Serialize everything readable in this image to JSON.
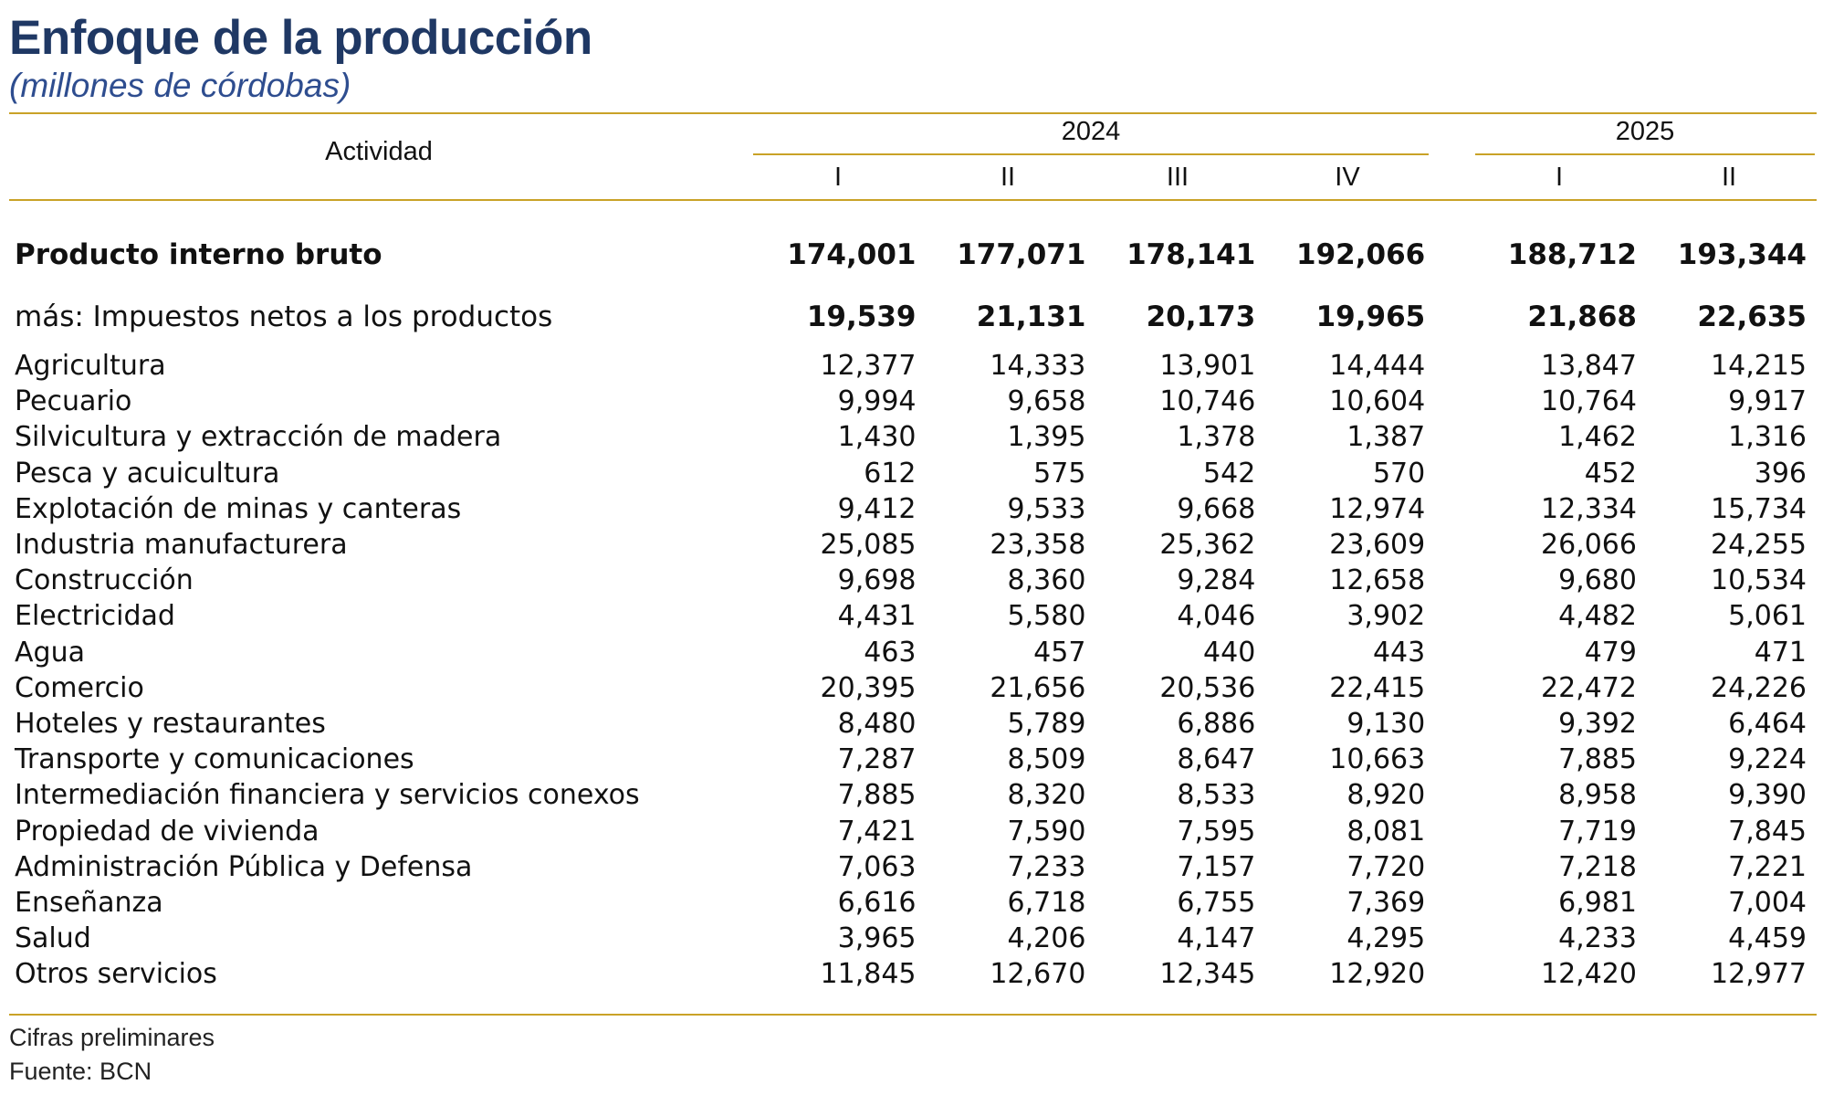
{
  "title": "Enfoque de la producción",
  "subtitle": "(millones de córdobas)",
  "header": {
    "activity": "Actividad",
    "year1": "2024",
    "year2": "2025",
    "quarters": [
      "I",
      "II",
      "III",
      "IV",
      "I",
      "II"
    ]
  },
  "gdp": {
    "label": "Producto interno bruto",
    "values": [
      "174,001",
      "177,071",
      "178,141",
      "192,066",
      "188,712",
      "193,344"
    ]
  },
  "taxes": {
    "label": "más: Impuestos netos a los productos",
    "values": [
      "19,539",
      "21,131",
      "20,173",
      "19,965",
      "21,868",
      "22,635"
    ]
  },
  "rows": [
    {
      "label": "Agricultura",
      "values": [
        "12,377",
        "14,333",
        "13,901",
        "14,444",
        "13,847",
        "14,215"
      ]
    },
    {
      "label": "Pecuario",
      "values": [
        "9,994",
        "9,658",
        "10,746",
        "10,604",
        "10,764",
        "9,917"
      ]
    },
    {
      "label": "Silvicultura y extracción de madera",
      "values": [
        "1,430",
        "1,395",
        "1,378",
        "1,387",
        "1,462",
        "1,316"
      ]
    },
    {
      "label": "Pesca y acuicultura",
      "values": [
        "612",
        "575",
        "542",
        "570",
        "452",
        "396"
      ]
    },
    {
      "label": "Explotación de minas y canteras",
      "values": [
        "9,412",
        "9,533",
        "9,668",
        "12,974",
        "12,334",
        "15,734"
      ]
    },
    {
      "label": "Industria manufacturera",
      "values": [
        "25,085",
        "23,358",
        "25,362",
        "23,609",
        "26,066",
        "24,255"
      ]
    },
    {
      "label": "Construcción",
      "values": [
        "9,698",
        "8,360",
        "9,284",
        "12,658",
        "9,680",
        "10,534"
      ]
    },
    {
      "label": "Electricidad",
      "values": [
        "4,431",
        "5,580",
        "4,046",
        "3,902",
        "4,482",
        "5,061"
      ]
    },
    {
      "label": "Agua",
      "values": [
        "463",
        "457",
        "440",
        "443",
        "479",
        "471"
      ]
    },
    {
      "label": "Comercio",
      "values": [
        "20,395",
        "21,656",
        "20,536",
        "22,415",
        "22,472",
        "24,226"
      ]
    },
    {
      "label": "Hoteles y restaurantes",
      "values": [
        "8,480",
        "5,789",
        "6,886",
        "9,130",
        "9,392",
        "6,464"
      ]
    },
    {
      "label": "Transporte y comunicaciones",
      "values": [
        "7,287",
        "8,509",
        "8,647",
        "10,663",
        "7,885",
        "9,224"
      ]
    },
    {
      "label": "Intermediación financiera y servicios conexos",
      "values": [
        "7,885",
        "8,320",
        "8,533",
        "8,920",
        "8,958",
        "9,390"
      ]
    },
    {
      "label": "Propiedad de vivienda",
      "values": [
        "7,421",
        "7,590",
        "7,595",
        "8,081",
        "7,719",
        "7,845"
      ]
    },
    {
      "label": "Administración Pública y Defensa",
      "values": [
        "7,063",
        "7,233",
        "7,157",
        "7,720",
        "7,218",
        "7,221"
      ]
    },
    {
      "label": "Enseñanza",
      "values": [
        "6,616",
        "6,718",
        "6,755",
        "7,369",
        "6,981",
        "7,004"
      ]
    },
    {
      "label": "Salud",
      "values": [
        "3,965",
        "4,206",
        "4,147",
        "4,295",
        "4,233",
        "4,459"
      ]
    },
    {
      "label": "Otros servicios",
      "values": [
        "11,845",
        "12,670",
        "12,345",
        "12,920",
        "12,420",
        "12,977"
      ]
    }
  ],
  "footer": {
    "note": "Cifras preliminares",
    "source": "Fuente: BCN"
  },
  "colors": {
    "title": "#1f3864",
    "rule": "#c9a227"
  }
}
